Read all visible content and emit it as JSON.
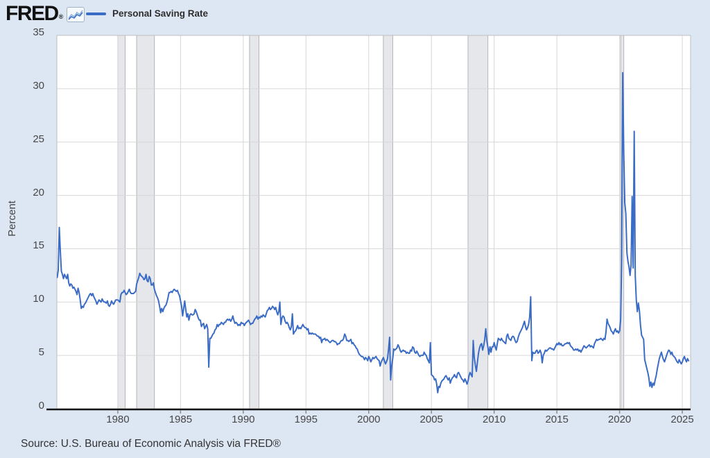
{
  "header": {
    "logo_text": "FRED",
    "logo_reg": "®",
    "legend_label": "Personal Saving Rate"
  },
  "footer": {
    "source_text": "Source: U.S. Bureau of Economic Analysis via FRED®"
  },
  "chart_data": {
    "type": "line",
    "title": "Personal Saving Rate",
    "xlabel": "",
    "ylabel": "Percent",
    "ylim": [
      0,
      35
    ],
    "xlim": [
      1975.14,
      2025.66
    ],
    "yticks": [
      0,
      5,
      10,
      15,
      20,
      25,
      30,
      35
    ],
    "xticks": [
      1980,
      1985,
      1990,
      1995,
      2000,
      2005,
      2010,
      2015,
      2020,
      2025
    ],
    "grid": true,
    "legend_position": "top-left",
    "line_color": "#3b6cc5",
    "band_fill": "#e5e7ea",
    "band_edge": "#b3b5b9",
    "grid_color": "#d7d7d7",
    "border_color": "#bfbfbf",
    "axis_color": "#141414",
    "recession_bands": [
      [
        1980.0,
        1980.583
      ],
      [
        1981.5,
        1982.917
      ],
      [
        1990.5,
        1991.25
      ],
      [
        2001.167,
        2001.917
      ],
      [
        2007.917,
        2009.5
      ],
      [
        2020.083,
        2020.333
      ]
    ],
    "series": {
      "name": "Personal Saving Rate",
      "frequency": "monthly",
      "x_start": 1975.1667,
      "x_step_years": 0.0833333,
      "values": [
        12.3,
        13.0,
        17.0,
        14.8,
        12.9,
        12.6,
        12.2,
        12.6,
        12.4,
        12.2,
        12.6,
        11.8,
        11.5,
        11.7,
        11.6,
        11.3,
        11.4,
        11.2,
        11.0,
        10.7,
        11.3,
        10.9,
        10.2,
        9.4,
        9.6,
        9.5,
        9.8,
        9.9,
        10.1,
        10.3,
        10.5,
        10.7,
        10.8,
        10.6,
        10.8,
        10.5,
        10.3,
        10.1,
        9.8,
        10.0,
        10.2,
        10.1,
        10.0,
        10.3,
        10.1,
        10.0,
        10.0,
        9.9,
        10.1,
        9.7,
        9.6,
        9.8,
        10.1,
        9.9,
        9.8,
        10.0,
        10.2,
        10.2,
        10.2,
        10.1,
        10.0,
        10.7,
        10.9,
        10.9,
        11.1,
        10.9,
        10.7,
        10.8,
        11.0,
        11.2,
        10.9,
        10.8,
        10.8,
        10.8,
        10.9,
        11.0,
        11.7,
        12.0,
        12.3,
        12.7,
        12.5,
        12.4,
        12.3,
        12.1,
        12.2,
        12.6,
        12.0,
        11.9,
        12.4,
        12.2,
        11.6,
        11.6,
        11.8,
        11.2,
        10.9,
        10.6,
        10.4,
        10.1,
        9.6,
        9.0,
        9.4,
        9.1,
        9.4,
        9.6,
        9.7,
        10.0,
        10.4,
        10.9,
        10.9,
        11.0,
        10.9,
        11.1,
        11.2,
        11.1,
        11.0,
        11.1,
        10.8,
        10.6,
        10.1,
        9.6,
        8.7,
        9.4,
        10.1,
        9.3,
        8.6,
        8.9,
        8.3,
        8.8,
        8.9,
        8.8,
        8.8,
        8.9,
        9.3,
        9.1,
        8.8,
        8.5,
        8.3,
        8.3,
        7.7,
        7.9,
        8.0,
        7.5,
        7.7,
        7.9,
        7.5,
        3.9,
        6.6,
        6.6,
        6.8,
        7.0,
        7.1,
        7.4,
        7.5,
        7.9,
        7.7,
        7.9,
        7.9,
        8.1,
        8.0,
        7.9,
        8.1,
        8.1,
        8.3,
        8.4,
        8.3,
        8.4,
        8.2,
        8.4,
        8.7,
        8.3,
        8.0,
        8.1,
        8.0,
        7.8,
        7.9,
        7.8,
        8.1,
        8.0,
        8.0,
        7.8,
        8.0,
        8.1,
        8.2,
        8.3,
        8.1,
        7.9,
        8.0,
        8.0,
        8.2,
        8.4,
        8.5,
        8.7,
        8.4,
        8.6,
        8.5,
        8.7,
        8.6,
        8.8,
        8.7,
        8.6,
        8.9,
        9.2,
        9.3,
        9.5,
        9.3,
        9.4,
        9.6,
        9.5,
        9.3,
        9.5,
        9.1,
        8.8,
        9.1,
        10.0,
        7.9,
        8.5,
        8.7,
        8.6,
        8.2,
        8.0,
        8.1,
        7.9,
        7.6,
        7.4,
        7.7,
        8.9,
        7.0,
        7.2,
        7.3,
        7.5,
        7.8,
        7.5,
        7.6,
        7.5,
        7.7,
        7.9,
        7.7,
        7.6,
        7.6,
        7.4,
        7.5,
        7.0,
        7.1,
        7.0,
        7.1,
        7.0,
        7.0,
        7.0,
        6.9,
        6.8,
        6.8,
        6.6,
        6.7,
        6.2,
        6.5,
        6.5,
        6.6,
        6.4,
        6.5,
        6.4,
        6.3,
        6.2,
        6.3,
        6.4,
        6.4,
        6.3,
        6.3,
        6.2,
        6.0,
        6.1,
        6.1,
        6.3,
        6.4,
        6.4,
        6.6,
        7.0,
        6.8,
        6.4,
        6.4,
        6.3,
        6.4,
        6.5,
        6.1,
        6.2,
        6.0,
        5.9,
        5.7,
        5.6,
        5.3,
        5.1,
        5.0,
        4.9,
        4.9,
        4.8,
        4.6,
        4.8,
        4.7,
        4.5,
        4.9,
        4.7,
        4.4,
        4.6,
        4.8,
        4.7,
        4.8,
        4.9,
        4.7,
        4.6,
        4.5,
        4.0,
        4.4,
        4.6,
        4.8,
        4.5,
        4.2,
        4.4,
        4.7,
        5.6,
        6.7,
        2.7,
        4.0,
        4.7,
        5.6,
        5.5,
        5.6,
        5.7,
        6.0,
        5.8,
        5.5,
        5.3,
        5.4,
        5.5,
        5.4,
        5.4,
        5.2,
        5.3,
        5.2,
        5.2,
        5.5,
        5.4,
        5.8,
        5.7,
        5.3,
        5.2,
        5.4,
        5.2,
        5.0,
        4.9,
        5.0,
        5.0,
        5.0,
        5.3,
        5.1,
        5.0,
        4.7,
        4.5,
        4.3,
        6.2,
        3.2,
        3.1,
        3.0,
        2.7,
        2.8,
        2.3,
        1.5,
        2.1,
        2.0,
        2.4,
        2.6,
        2.7,
        2.8,
        3.0,
        3.1,
        2.9,
        2.7,
        2.9,
        2.4,
        2.7,
        2.9,
        3.0,
        3.2,
        3.0,
        2.9,
        3.3,
        3.4,
        3.2,
        3.0,
        2.8,
        2.7,
        2.5,
        2.8,
        2.6,
        2.3,
        2.6,
        3.1,
        3.4,
        3.2,
        3.0,
        6.4,
        4.8,
        4.1,
        3.5,
        4.4,
        5.2,
        5.7,
        6.0,
        6.1,
        5.5,
        5.9,
        6.5,
        7.5,
        6.4,
        5.8,
        5.1,
        5.8,
        5.3,
        5.8,
        5.8,
        6.2,
        5.8,
        5.5,
        6.1,
        6.6,
        6.5,
        6.4,
        6.6,
        6.4,
        6.3,
        6.2,
        6.1,
        6.8,
        7.0,
        6.6,
        6.5,
        6.4,
        6.7,
        6.8,
        6.7,
        6.4,
        6.2,
        6.3,
        6.7,
        7.0,
        7.2,
        7.4,
        7.6,
        7.9,
        8.2,
        7.7,
        7.4,
        7.6,
        7.9,
        8.6,
        10.5,
        4.5,
        5.3,
        5.2,
        5.2,
        5.4,
        5.5,
        5.2,
        5.3,
        5.5,
        5.2,
        4.3,
        5.0,
        5.2,
        5.5,
        5.4,
        5.5,
        5.6,
        5.7,
        5.7,
        5.6,
        5.6,
        5.5,
        5.7,
        5.9,
        6.1,
        6.0,
        6.2,
        6.0,
        6.1,
        5.9,
        5.9,
        6.0,
        6.1,
        6.1,
        6.2,
        6.1,
        6.2,
        5.9,
        5.8,
        5.7,
        5.5,
        5.5,
        5.6,
        5.5,
        5.6,
        5.4,
        5.5,
        5.3,
        5.5,
        5.7,
        5.9,
        5.8,
        5.7,
        5.8,
        5.9,
        6.0,
        5.8,
        5.9,
        5.8,
        5.7,
        6.1,
        6.3,
        6.5,
        6.4,
        6.5,
        6.5,
        6.6,
        6.5,
        6.4,
        6.6,
        6.5,
        7.2,
        8.4,
        8.0,
        7.8,
        7.6,
        7.3,
        7.2,
        7.0,
        7.3,
        7.5,
        7.2,
        7.3,
        7.1,
        7.3,
        8.3,
        13.8,
        31.5,
        24.0,
        19.3,
        18.3,
        14.6,
        13.8,
        13.3,
        12.5,
        13.5,
        19.9,
        13.2,
        26.0,
        12.5,
        10.2,
        9.1,
        9.9,
        9.2,
        7.8,
        6.9,
        6.7,
        6.5,
        4.6,
        4.2,
        3.8,
        3.4,
        2.9,
        2.1,
        2.5,
        2.0,
        2.4,
        2.2,
        2.7,
        3.1,
        3.7,
        4.2,
        4.7,
        5.0,
        5.3,
        4.9,
        4.6,
        4.4,
        4.7,
        5.0,
        5.3,
        5.5,
        5.4,
        5.1,
        5.3,
        5.0,
        4.9,
        4.8,
        4.6,
        4.4,
        4.3,
        4.6,
        4.4,
        4.2,
        4.4,
        4.7,
        4.9,
        4.6,
        4.4,
        4.7,
        4.5
      ]
    }
  }
}
